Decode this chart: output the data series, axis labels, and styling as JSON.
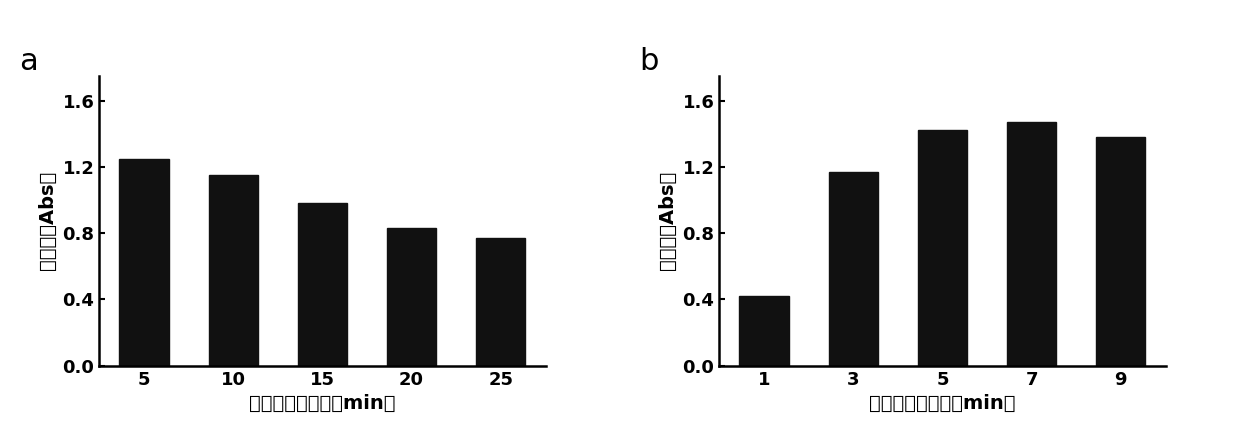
{
  "panel_a": {
    "label": "a",
    "categories": [
      "5",
      "10",
      "15",
      "20",
      "25"
    ],
    "values": [
      1.25,
      1.15,
      0.98,
      0.83,
      0.77
    ],
    "bar_color": "#111111",
    "xlabel": "沸水浴反应时间（min）",
    "ylabel": "吸光度（Abs）",
    "ylim": [
      0,
      1.75
    ],
    "yticks": [
      0.0,
      0.4,
      0.8,
      1.2,
      1.6
    ]
  },
  "panel_b": {
    "label": "b",
    "categories": [
      "1",
      "3",
      "5",
      "7",
      "9"
    ],
    "values": [
      0.42,
      1.17,
      1.42,
      1.47,
      1.38
    ],
    "bar_color": "#111111",
    "xlabel": "沸水浴反应时间（min）",
    "ylabel": "吸光度（Abs）",
    "ylim": [
      0,
      1.75
    ],
    "yticks": [
      0.0,
      0.4,
      0.8,
      1.2,
      1.6
    ]
  },
  "background_color": "#ffffff",
  "bar_width": 0.55,
  "tick_fontsize": 13,
  "label_fontsize": 14,
  "panel_label_fontsize": 22
}
